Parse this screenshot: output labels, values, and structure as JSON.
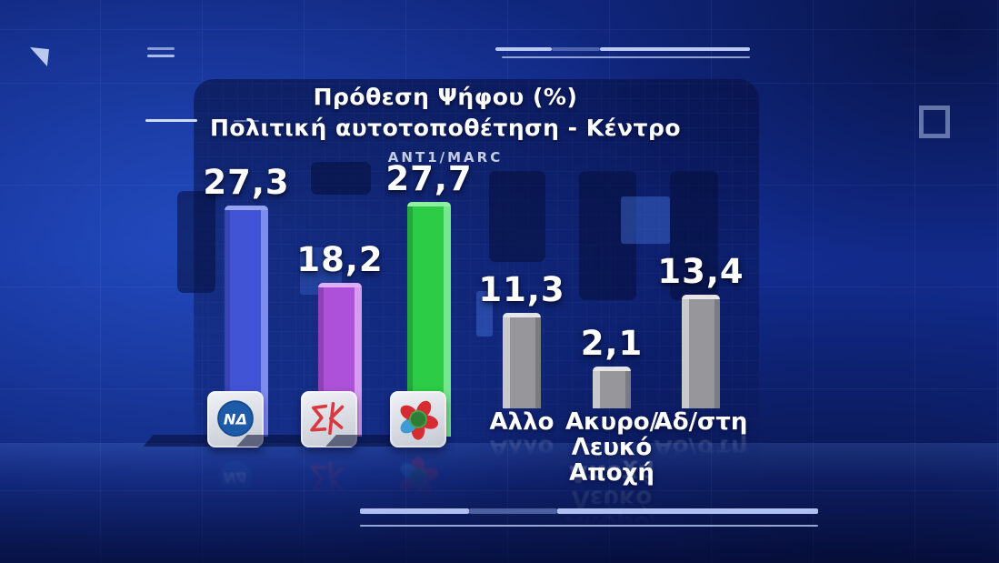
{
  "header": {
    "title_line1": "Πρόθεση Ψήφου (%)",
    "title_line2": "Πολιτική αυτοτοποθέτηση - Κέντρο",
    "source": "ΑΝΤ1/MARC"
  },
  "chart_data": {
    "type": "bar",
    "title": "Πρόθεση Ψήφου (%)",
    "subtitle": "Πολιτική αυτοτοποθέτηση - Κέντρο",
    "source": "ΑΝΤ1/MARC",
    "unit": "%",
    "decimal_separator": ",",
    "categories": [
      "ΝΔ",
      "ΣΥΡΙΖΑ",
      "ΠΑΣΟΚ",
      "Αλλο",
      "Ακυρο/Λευκό Αποχή",
      "Αδ/στη"
    ],
    "values": [
      27.3,
      18.2,
      27.7,
      11.3,
      2.1,
      13.4
    ],
    "ylim": [
      0,
      30
    ],
    "grid": false,
    "legend": false,
    "bars": [
      {
        "name": "ΝΔ",
        "value": 27.3,
        "display": "27,3",
        "color_key": "nd",
        "logo": "nd-logo",
        "label_lines": []
      },
      {
        "name": "ΣΥΡΙΖΑ",
        "value": 18.2,
        "display": "18,2",
        "color_key": "syriza",
        "logo": "syriza-logo",
        "label_lines": []
      },
      {
        "name": "ΠΑΣΟΚ",
        "value": 27.7,
        "display": "27,7",
        "color_key": "pasok",
        "logo": "pasok-logo",
        "label_lines": []
      },
      {
        "name": "Αλλο",
        "value": 11.3,
        "display": "11,3",
        "color_key": "gray",
        "logo": null,
        "label_lines": [
          "Αλλο"
        ]
      },
      {
        "name": "Ακυρο/Λευκό Αποχή",
        "value": 2.1,
        "display": "2,1",
        "color_key": "gray",
        "logo": null,
        "label_lines": [
          "Ακυρο/Λευκό",
          "Αποχή"
        ]
      },
      {
        "name": "Αδ/στη",
        "value": 13.4,
        "display": "13,4",
        "color_key": "gray",
        "logo": null,
        "label_lines": [
          "Αδ/στη"
        ]
      }
    ]
  },
  "colors": {
    "background": "#132d92",
    "panel": "#081248",
    "nd_bar": "#4254d6",
    "syriza_bar": "#ad52d8",
    "pasok_bar": "#2ccc47",
    "neutral_bar": "#96969b",
    "nd_logo_blue": "#1d5aa8",
    "syriza_logo_red": "#d93a3f",
    "pasok_logo_red": "#d62b30",
    "pasok_logo_green": "#2e7c36",
    "pasok_logo_blue": "#3d9bd5",
    "text": "#ffffff",
    "source_text": "#c5cde2",
    "deco_line": "#b9c9f2"
  }
}
